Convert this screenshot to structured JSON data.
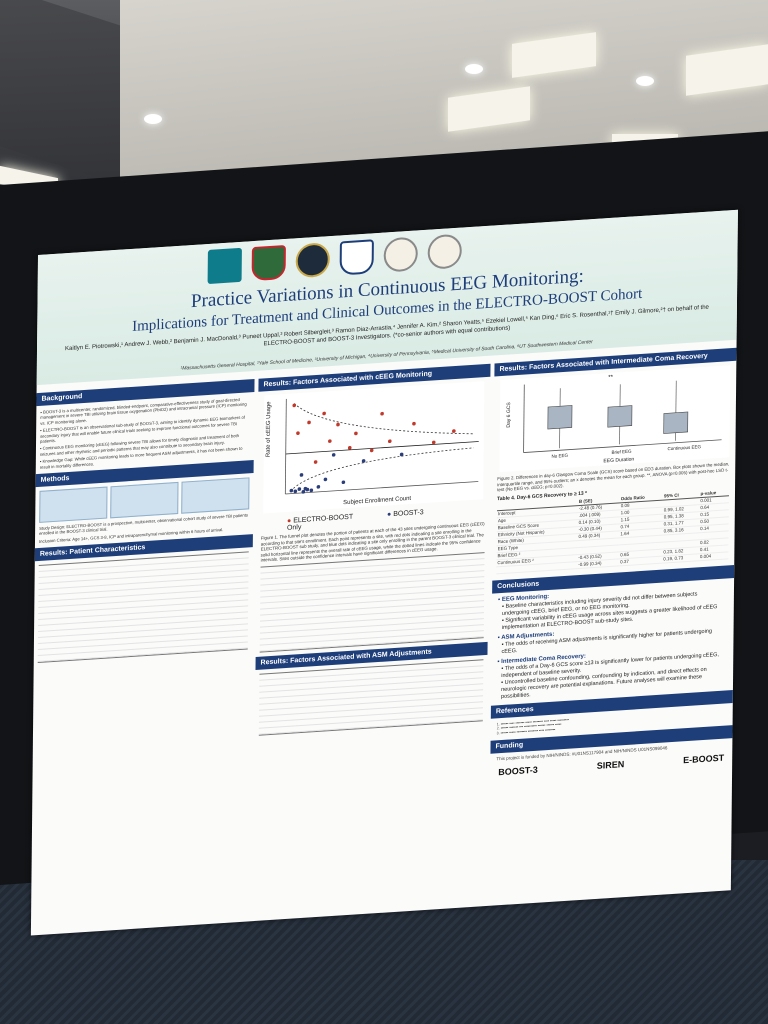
{
  "poster": {
    "title": "Practice Variations in Continuous EEG Monitoring:",
    "subtitle": "Implications for Treatment and Clinical Outcomes in the ELECTRO-BOOST Cohort",
    "authors": "Kaitlyn E. Piotrowski,¹ Andrew J. Webb,² Benjamin J. MacDonald,³ Puneet Uppal,³ Robert Silbergleit,³ Ramon Diaz-Arrastia,⁴ Jennifer A. Kim,² Sharon Yeatts,⁵ Ezekiel Lowell,⁵ Kan Ding,⁶ Eric S. Rosenthal,¹† Emily J. Gilmore,²† on behalf of the ELECTRO-BOOST and BOOST-3 Investigators. (*co-senior authors with equal contributions)",
    "affiliations": "¹Massachusetts General Hospital, ²Yale School of Medicine, ³University of Michigan, ⁴University of Pennsylvania, ⁵Medical University of South Carolina, ⁶UT Southwestern Medical Center"
  },
  "sections": {
    "background": "Background",
    "methods": "Methods",
    "patient_characteristics": "Results: Patient Characteristics",
    "factors_ceeg": "Results: Factors Associated with cEEG Monitoring",
    "factors_asm": "Results: Factors Associated with ASM Adjustments",
    "factors_coma": "Results: Factors Associated with Intermediate Coma Recovery",
    "conclusions": "Conclusions",
    "references": "References",
    "funding": "Funding"
  },
  "funnel_chart": {
    "xlabel": "Subject Enrollment Count",
    "ylabel": "Rate of cEEG Usage",
    "legend": [
      "ELECTRO-BOOST",
      "BOOST-3 Only"
    ],
    "caption": "Figure 1. The funnel plot denotes the portion of patients at each of the 43 sites undergoing continuous EEG (cEEG) according to that site's enrollment. Each point represents a site, with red dots indicating a site enrolling in the ELECTRO-BOOST sub study, and blue dots indicating a site only enrolling in the parent BOOST-3 clinical trial. The solid horizontal line represents the overall rate of cEEG usage, while the dotted lines indicate the 95% confidence intervals. Sites outside the confidence intervals have significant differences in cEEG usage."
  },
  "boxplot": {
    "xlabel": "EEG Duration",
    "ylabel": "Day 6 GCS",
    "categories": [
      "No EEG",
      "Brief EEG",
      "Continuous EEG"
    ],
    "caption": "Figure 2. Differences in day-6 Glasgow Coma Scale (GCS) score based on EEG duration. Box plots shown the median, interquartile range, and 95% outliers; an x denotes the mean for each group. **, ANOVA (p=0.005) with post-hoc LSD t-test (No EEG vs. cEEG; p=0.002)."
  },
  "coma_table": {
    "title": "Table 4. Day-6 GCS Recovery to ≥ 13 *",
    "headers": [
      "",
      "B (SE)",
      "Odds Ratio",
      "95% CI",
      "p-value"
    ],
    "rows": [
      [
        "Intercept",
        "-2.48 (0.76)",
        "0.08",
        "",
        "0.001"
      ],
      [
        "Age",
        ".004 (.009)",
        "1.00",
        "0.99, 1.02",
        "0.64"
      ],
      [
        "Baseline GCS Score",
        "0.14 (0.10)",
        "1.15",
        "0.95, 1.38",
        "0.15"
      ],
      [
        "Ethnicity (Not Hispanic)",
        "-0.30 (0.44)",
        "0.74",
        "0.31, 1.77",
        "0.50"
      ],
      [
        "Race (White)",
        "0.49 (0.34)",
        "1.64",
        "0.85, 3.16",
        "0.14"
      ],
      [
        "EEG Type",
        "",
        "",
        "",
        ""
      ],
      [
        "Brief EEG ²",
        "",
        "",
        "",
        "0.02"
      ],
      [
        "Continuous EEG ²",
        "-0.43 (0.52)",
        "0.65",
        "0.23, 1.82",
        "0.41"
      ],
      [
        "",
        "-0.99 (0.34)",
        "0.37",
        "0.19, 0.73",
        "0.004"
      ]
    ]
  },
  "conclusions": {
    "items": [
      {
        "head": "EEG Monitoring:",
        "points": [
          "Baseline characteristics including injury severity did not differ between subjects undergoing cEEG, brief EEG, or no EEG monitoring.",
          "Significant variability in cEEG usage across sites suggests a greater likelihood of cEEG implementation at ELECTRO-BOOST sub-study sites."
        ]
      },
      {
        "head": "ASM Adjustments:",
        "points": [
          "The odds of receiving ASM adjustments is significantly higher for patients undergoing cEEG."
        ]
      },
      {
        "head": "Intermediate Coma Recovery:",
        "points": [
          "The odds of a Day-6 GCS score ≥13 is significantly lower for patients undergoing cEEG, independent of baseline severity.",
          "Uncontrolled baseline confounding, confounding by indication, and direct effects on neurologic recovery are potential explanations. Future analyses will examine these possibilities."
        ]
      }
    ]
  },
  "funding_text": "This project is funded by NIH/NINDS: #U01NS117904 and NIH/NINDS U01NS099046",
  "sponsors": [
    "BOOST-3",
    "SIREN",
    "E-BOOST"
  ]
}
